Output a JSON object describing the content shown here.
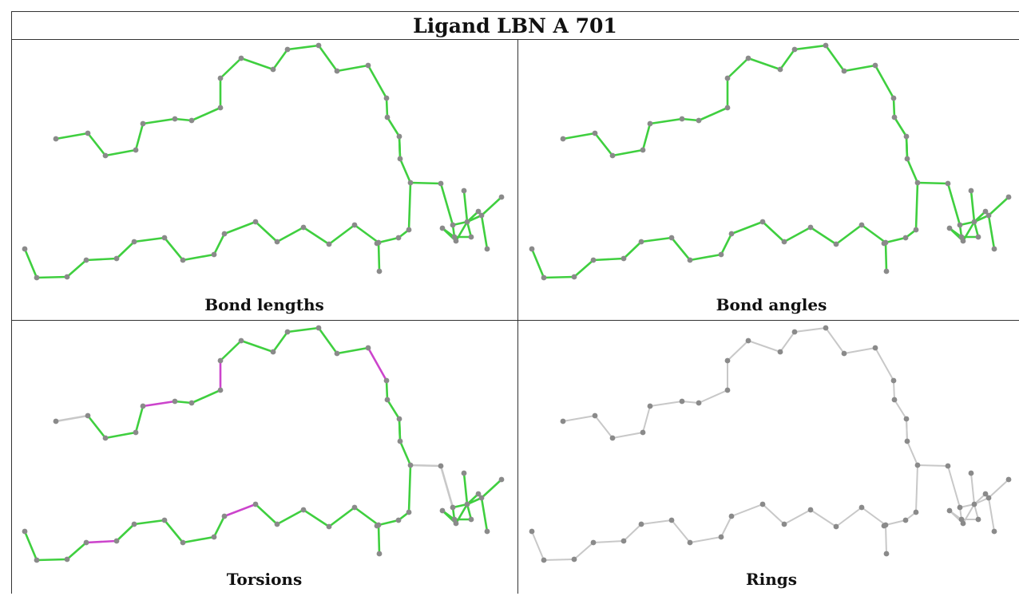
{
  "title": "Ligand LBN A 701",
  "panels": [
    {
      "caption": "Bond lengths",
      "mode": "green"
    },
    {
      "caption": "Bond angles",
      "mode": "green"
    },
    {
      "caption": "Torsions",
      "mode": "torsion"
    },
    {
      "caption": "Rings",
      "mode": "gray"
    }
  ],
  "colors": {
    "bond_ok": "#3fcf3f",
    "bond_flagged": "#cc44cc",
    "bond_neutral": "#c8c8c8",
    "atom": "#8a8a8a",
    "grid_line": "#333333"
  },
  "torsion_flagged_segments": [
    [
      4,
      5
    ],
    [
      7,
      8
    ],
    [
      14,
      15
    ],
    [
      31,
      32
    ],
    [
      37,
      38
    ],
    [
      43,
      44
    ]
  ],
  "torsion_neutral_segments": [
    [
      0,
      1
    ],
    [
      19,
      20
    ],
    [
      20,
      21
    ],
    [
      45,
      46
    ]
  ]
}
